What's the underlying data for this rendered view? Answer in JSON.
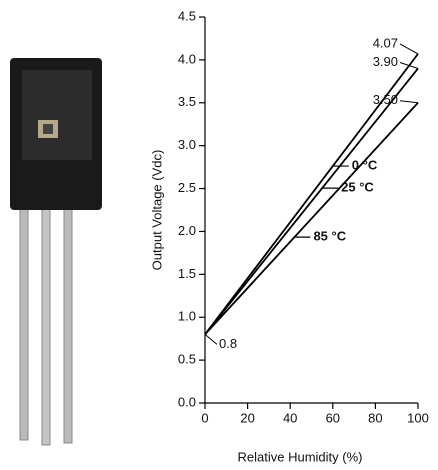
{
  "chart_data": {
    "type": "line",
    "x_label": "Relative Humidity (%)",
    "y_label": "Output Voltage (Vdc)",
    "x": [
      0,
      100
    ],
    "series": [
      {
        "name": "0 °C",
        "color": "#000000",
        "values": [
          0.8,
          4.07
        ],
        "value_labels": [
          "0.8",
          "4.07"
        ]
      },
      {
        "name": "25 °C",
        "color": "#000000",
        "values": [
          0.8,
          3.9
        ],
        "value_labels": [
          null,
          "3.90"
        ]
      },
      {
        "name": "85 °C",
        "color": "#000000",
        "values": [
          0.8,
          3.5
        ],
        "value_labels": [
          null,
          "3.50"
        ]
      }
    ],
    "xlim": [
      0,
      100
    ],
    "xticks": [
      0,
      20,
      40,
      60,
      80,
      100
    ],
    "ylim": [
      0,
      4.5
    ],
    "yticks": [
      {
        "value": 0,
        "label": "0.0"
      },
      0.5,
      {
        "value": 1,
        "label": "1.0"
      },
      1.5,
      {
        "value": 2,
        "label": "2.0"
      },
      2.5,
      {
        "value": 3,
        "label": "3.0"
      },
      3.5,
      {
        "value": 4,
        "label": "4.0"
      },
      4.5
    ],
    "grid": false
  }
}
